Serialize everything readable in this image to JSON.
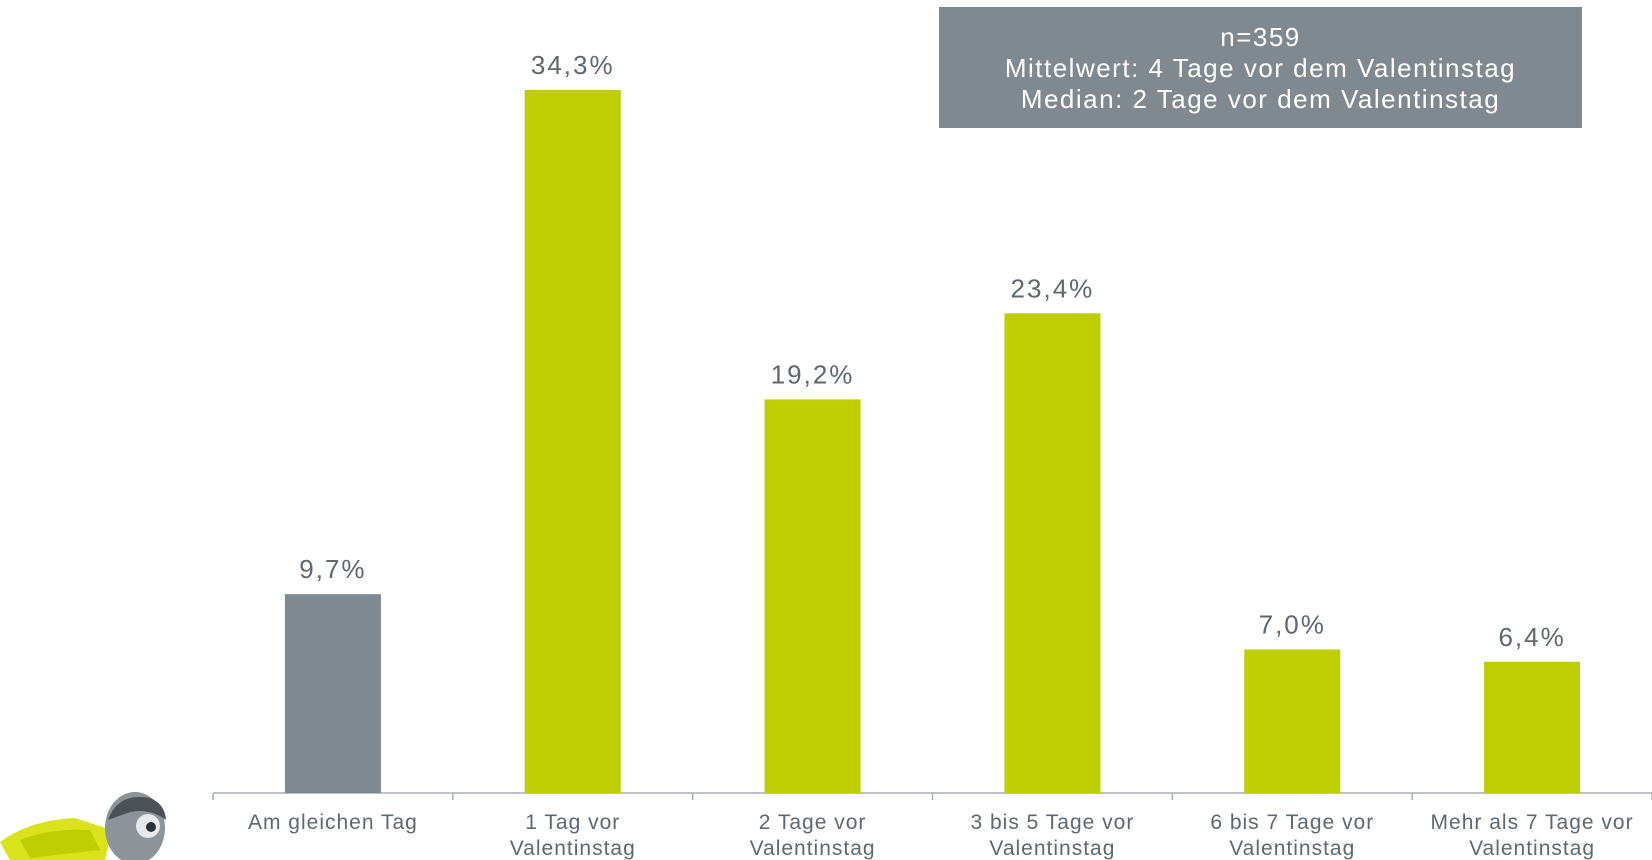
{
  "info_box": {
    "line1": "n=359",
    "line2": "Mittelwert: 4 Tage vor dem Valentinstag",
    "line3": "Median: 2 Tage vor dem Valentinstag"
  },
  "colors": {
    "highlight_bar": "#808890",
    "main_bar": "#bfce00",
    "label_text": "#5f6870",
    "axis": "#a9aeb3",
    "info_box_bg": "#808890"
  },
  "chart_data": {
    "type": "bar",
    "title": "",
    "xlabel": "",
    "ylabel": "",
    "ylim": [
      0,
      36
    ],
    "grid": false,
    "categories": [
      [
        "Am gleichen Tag"
      ],
      [
        "1 Tag vor",
        "Valentinstag"
      ],
      [
        "2 Tage vor",
        "Valentinstag"
      ],
      [
        "3 bis 5 Tage vor",
        "Valentinstag"
      ],
      [
        "6 bis 7 Tage vor",
        "Valentinstag"
      ],
      [
        "Mehr als 7 Tage vor",
        "Valentinstag"
      ]
    ],
    "values": [
      9.7,
      34.3,
      19.2,
      23.4,
      7.0,
      6.4
    ],
    "value_labels": [
      "9,7%",
      "34,3%",
      "19,2%",
      "23,4%",
      "7,0%",
      "6,4%"
    ],
    "highlighted_index": 0
  }
}
